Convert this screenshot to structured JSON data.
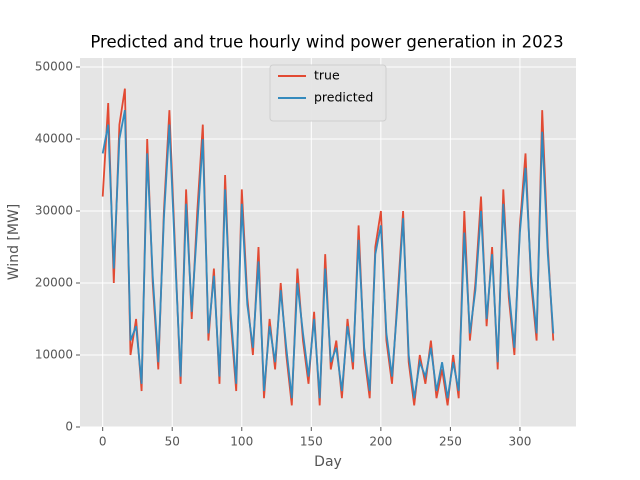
{
  "chart_data": {
    "type": "line",
    "title": "Predicted and true hourly wind power generation in 2023",
    "xlabel": "Day",
    "ylabel": "Wind [MW]",
    "x": [
      0,
      4,
      8,
      12,
      16,
      20,
      24,
      28,
      32,
      36,
      40,
      44,
      48,
      52,
      56,
      60,
      64,
      68,
      72,
      76,
      80,
      84,
      88,
      92,
      96,
      100,
      104,
      108,
      112,
      116,
      120,
      124,
      128,
      132,
      136,
      140,
      144,
      148,
      152,
      156,
      160,
      164,
      168,
      172,
      176,
      180,
      184,
      188,
      192,
      196,
      200,
      204,
      208,
      212,
      216,
      220,
      224,
      228,
      232,
      236,
      240,
      244,
      248,
      252,
      256,
      260,
      264,
      268,
      272,
      276,
      280,
      284,
      288,
      292,
      296,
      300,
      304,
      308,
      312,
      316,
      320,
      324
    ],
    "series": [
      {
        "name": "true",
        "color": "#e24a33",
        "values": [
          32000,
          45000,
          20000,
          42000,
          47000,
          10000,
          15000,
          5000,
          40000,
          20000,
          8000,
          30000,
          44000,
          25000,
          6000,
          33000,
          15000,
          30000,
          42000,
          12000,
          22000,
          6000,
          35000,
          15000,
          5000,
          33000,
          18000,
          10000,
          25000,
          4000,
          15000,
          8000,
          20000,
          10000,
          3000,
          22000,
          12000,
          6000,
          16000,
          3000,
          24000,
          8000,
          12000,
          4000,
          15000,
          8000,
          28000,
          10000,
          4000,
          25000,
          30000,
          12000,
          6000,
          18000,
          30000,
          9000,
          3000,
          10000,
          6000,
          12000,
          4000,
          8000,
          3000,
          10000,
          4000,
          30000,
          12000,
          20000,
          32000,
          14000,
          25000,
          8000,
          33000,
          18000,
          10000,
          28000,
          38000,
          20000,
          12000,
          44000,
          25000,
          12000
        ]
      },
      {
        "name": "predicted",
        "color": "#348abd",
        "values": [
          38000,
          42000,
          22000,
          40000,
          44000,
          12000,
          14000,
          6000,
          38000,
          21000,
          9000,
          29000,
          42000,
          24000,
          7000,
          31000,
          16000,
          28000,
          40000,
          13000,
          21000,
          7000,
          33000,
          16000,
          6000,
          31000,
          17000,
          11000,
          23000,
          5000,
          14000,
          9000,
          19000,
          11000,
          4000,
          20000,
          13000,
          7000,
          15000,
          4000,
          22000,
          9000,
          11000,
          5000,
          14000,
          9000,
          26000,
          11000,
          5000,
          24000,
          28000,
          13000,
          7000,
          17000,
          29000,
          10000,
          4000,
          9000,
          7000,
          11000,
          5000,
          9000,
          4000,
          9000,
          5000,
          27000,
          13000,
          19000,
          30000,
          15000,
          24000,
          9000,
          31000,
          19000,
          11000,
          27000,
          36000,
          21000,
          13000,
          41000,
          24000,
          13000
        ]
      }
    ],
    "xlim": [
      -16.3,
      340.3
    ],
    "ylim": [
      0,
      51250
    ],
    "xticks": [
      0,
      50,
      100,
      150,
      200,
      250,
      300
    ],
    "yticks": [
      0,
      10000,
      20000,
      30000,
      40000,
      50000
    ],
    "grid": true,
    "legend": "upper center"
  }
}
